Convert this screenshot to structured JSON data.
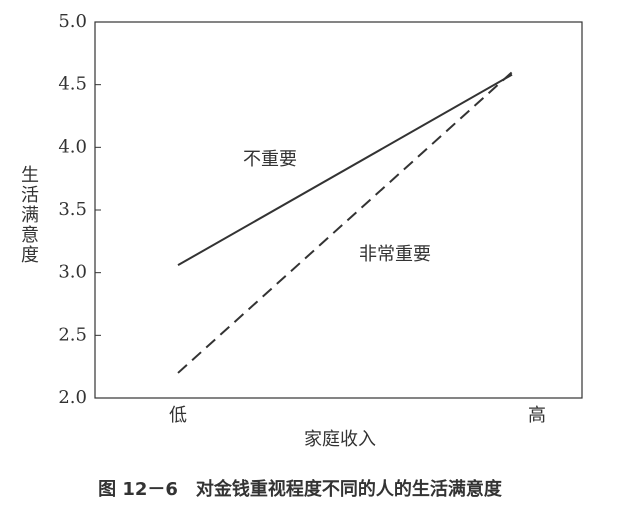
{
  "chart_data": {
    "type": "line",
    "caption": "图 12－6　对金钱重视程度不同的人的生活满意度",
    "x_label": "家庭收入",
    "y_label": "生活满意度",
    "categories": [
      "低",
      "高"
    ],
    "series": [
      {
        "name": "不重要",
        "color": "#333333",
        "dash": "solid",
        "values": [
          3.06,
          4.58
        ]
      },
      {
        "name": "非常重要",
        "color": "#333333",
        "dash": "dashed",
        "values": [
          2.2,
          4.6
        ]
      }
    ],
    "ylim": [
      2.0,
      5.0
    ],
    "yticks": [
      {
        "value": 2.0,
        "label": "2.0"
      },
      {
        "value": 2.5,
        "label": "2.5"
      },
      {
        "value": 3.0,
        "label": "3.0"
      },
      {
        "value": 3.5,
        "label": "3.5"
      },
      {
        "value": 4.0,
        "label": "4.0"
      },
      {
        "value": 4.5,
        "label": "4.5"
      },
      {
        "value": 5.0,
        "label": "5.0"
      }
    ]
  }
}
